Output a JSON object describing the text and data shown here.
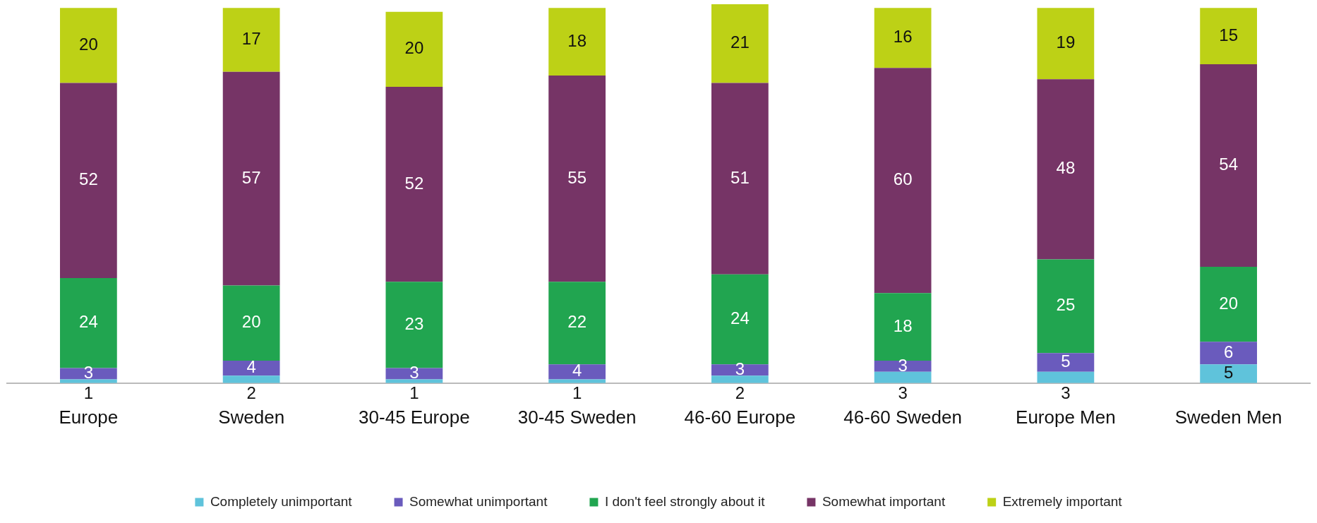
{
  "chart_data": {
    "type": "bar",
    "stacked": true,
    "data_labels": true,
    "grid": false,
    "legend": "bottom",
    "tick_labels": "x",
    "ylim": [
      0,
      101
    ],
    "categories": [
      "Europe",
      "Sweden",
      "30-45 Europe",
      "30-45 Sweden",
      "46-60 Europe",
      "46-60 Sweden",
      "Europe Men",
      "Sweden Men"
    ],
    "series": [
      {
        "name": "Completely unimportant",
        "color": "#5fc3db",
        "values": [
          1,
          2,
          1,
          1,
          2,
          3,
          3,
          5
        ]
      },
      {
        "name": "Somewhat unimportant",
        "color": "#6a5bbd",
        "values": [
          3,
          4,
          3,
          4,
          3,
          3,
          5,
          6
        ]
      },
      {
        "name": "I don't feel strongly about it",
        "color": "#21a550",
        "values": [
          24,
          20,
          23,
          22,
          24,
          18,
          25,
          20
        ]
      },
      {
        "name": "Somewhat important",
        "color": "#763466",
        "values": [
          52,
          57,
          52,
          55,
          51,
          60,
          48,
          54
        ]
      },
      {
        "name": "Extremely important",
        "color": "#bdd116",
        "values": [
          20,
          17,
          20,
          18,
          21,
          16,
          19,
          15
        ]
      }
    ]
  }
}
